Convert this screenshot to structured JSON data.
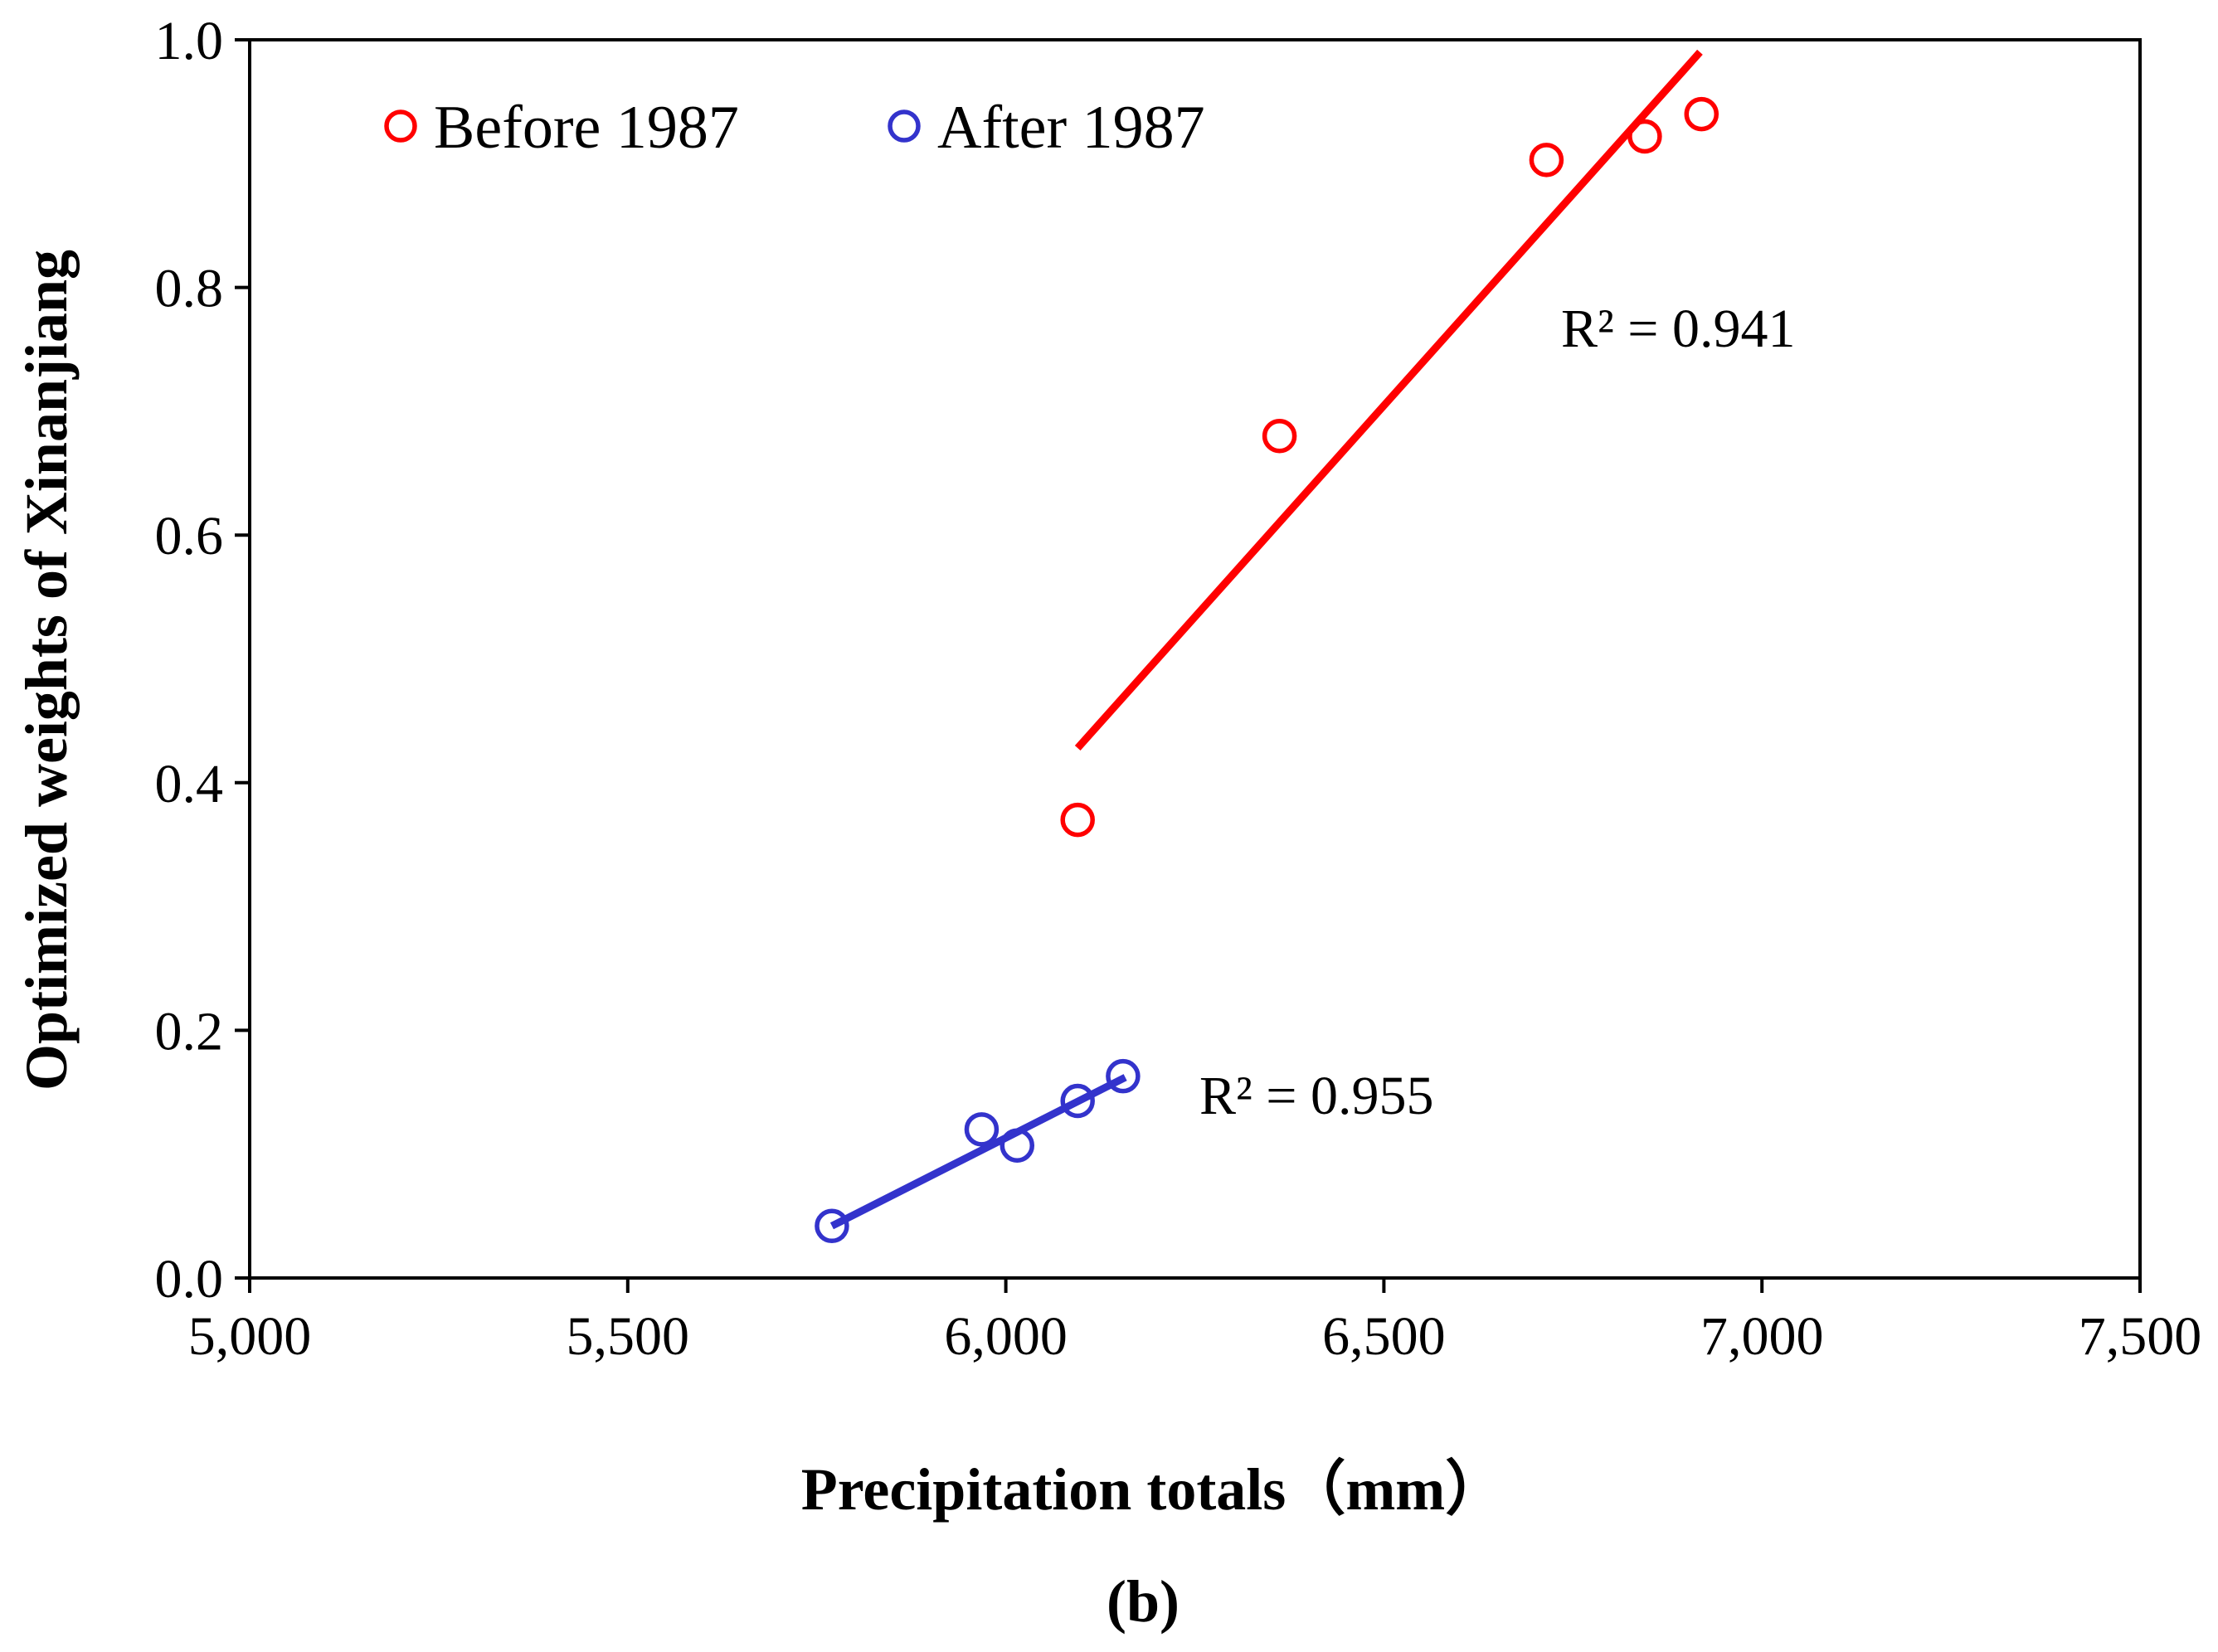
{
  "chart_data": {
    "type": "scatter",
    "xlabel": "Precipitation totals（mm）",
    "ylabel": "Optimized weights of Xinanjiang",
    "caption": "(b)",
    "xlim": [
      5000,
      7500
    ],
    "ylim": [
      0,
      1.0
    ],
    "xticks": [
      "5,000",
      "5,500",
      "6,000",
      "6,500",
      "7,000",
      "7,500"
    ],
    "yticks": [
      "0.0",
      "0.2",
      "0.4",
      "0.6",
      "0.8",
      "1.0"
    ],
    "grid": false,
    "legend_position": "top-left",
    "series": [
      {
        "name": "Before 1987",
        "color": "#ff0000",
        "marker": "open-circle",
        "points": [
          {
            "x": 6095,
            "y": 0.37
          },
          {
            "x": 6362,
            "y": 0.68
          },
          {
            "x": 6715,
            "y": 0.903
          },
          {
            "x": 6845,
            "y": 0.922
          },
          {
            "x": 6920,
            "y": 0.94
          }
        ],
        "trendline": {
          "x": [
            6095,
            6918
          ],
          "y": [
            0.428,
            0.99
          ]
        },
        "r_squared_label": "R² = 0.941"
      },
      {
        "name": "After 1987",
        "color": "#3333cc",
        "marker": "open-circle",
        "points": [
          {
            "x": 5770,
            "y": 0.042
          },
          {
            "x": 5968,
            "y": 0.12
          },
          {
            "x": 6015,
            "y": 0.107
          },
          {
            "x": 6095,
            "y": 0.143
          },
          {
            "x": 6155,
            "y": 0.163
          }
        ],
        "trendline": {
          "x": [
            5770,
            6158
          ],
          "y": [
            0.042,
            0.162
          ]
        },
        "r_squared_label": "R² = 0.955"
      }
    ]
  }
}
